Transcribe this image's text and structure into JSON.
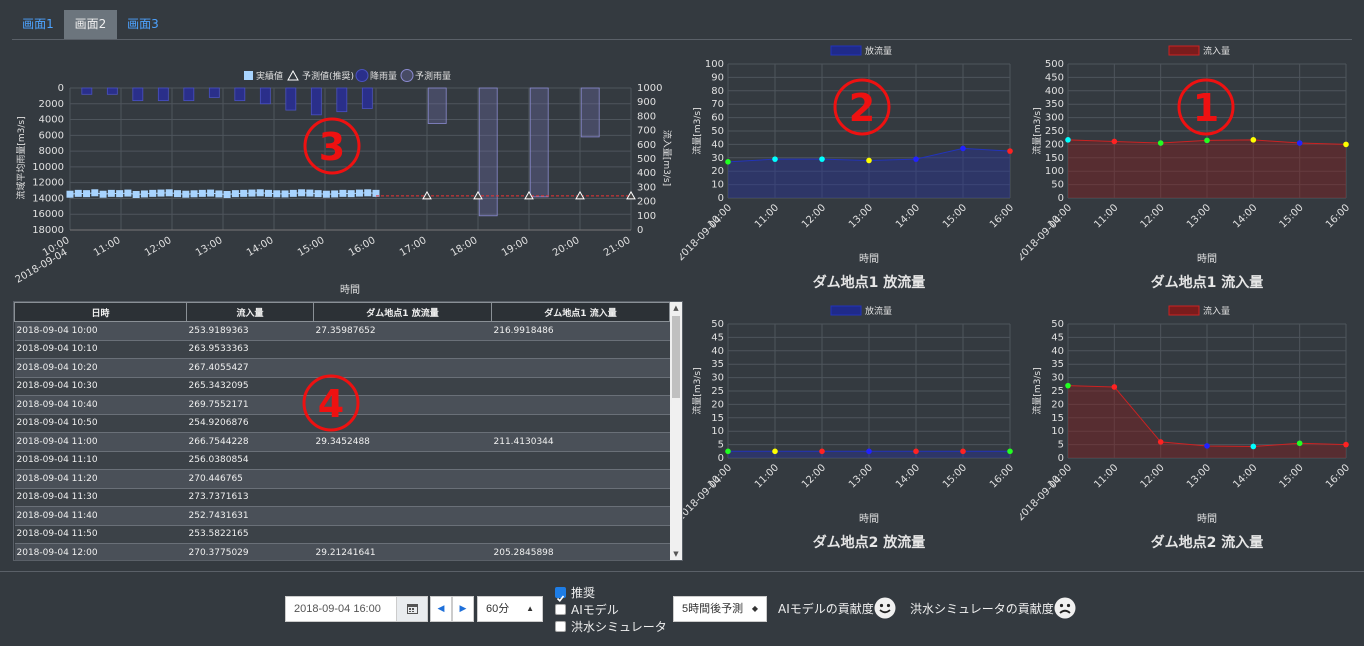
{
  "tabs": [
    "画面1",
    "画面2",
    "画面3"
  ],
  "active_tab": 1,
  "annotations": {
    "a1": "①",
    "a2": "②",
    "a3": "③",
    "a4": "④"
  },
  "main_chart": {
    "legend": [
      "実績値",
      "予測値(推奨)",
      "降雨量",
      "予測雨量"
    ],
    "y_left_label": "流域平均雨量[m3/s]",
    "y_right_label": "流入量[m3/s]",
    "xlabel": "時間",
    "x_ticks": [
      "10:00",
      "11:00",
      "12:00",
      "13:00",
      "14:00",
      "15:00",
      "16:00",
      "17:00",
      "18:00",
      "19:00",
      "20:00",
      "21:00"
    ],
    "x_first_date": "2018-09-04",
    "left_ticks": [
      "0",
      "2000",
      "4000",
      "6000",
      "8000",
      "10000",
      "12000",
      "14000",
      "16000",
      "18000"
    ],
    "right_ticks": [
      "1000",
      "900",
      "800",
      "700",
      "600",
      "500",
      "400",
      "300",
      "200",
      "100",
      "0"
    ]
  },
  "chart_data": [
    {
      "type": "bar+line",
      "title": "",
      "xlabel": "時間",
      "ylabel_left": "流域平均雨量[m3/s]",
      "ylabel_right": "流入量[m3/s]",
      "rain_bars_left_reversed": {
        "x_hours": [
          10.33,
          10.83,
          11.33,
          11.83,
          12.33,
          12.83,
          13.33,
          13.83,
          14.33,
          14.83,
          15.33,
          15.83
        ],
        "values": [
          800,
          800,
          1600,
          1600,
          1600,
          1200,
          1600,
          2000,
          2800,
          3400,
          3000,
          2600
        ]
      },
      "forecast_rain_bars": {
        "x_hours": [
          17.2,
          18.2,
          19.2,
          20.2
        ],
        "values": [
          4500,
          16200,
          13800,
          6200
        ]
      },
      "actual_inflow": {
        "x_range": [
          "10:00",
          "16:00"
        ],
        "values_approx": [
          252,
          258,
          256,
          262,
          252,
          258,
          256,
          260,
          250,
          254,
          258,
          260,
          262,
          256,
          252,
          255,
          258,
          260,
          254,
          250,
          256,
          258,
          260,
          262,
          258,
          255,
          254,
          258,
          262,
          260,
          256,
          252,
          254,
          258,
          256,
          260,
          262,
          258
        ]
      },
      "forecast_inflow": {
        "x_hours": [
          16,
          17,
          18,
          19,
          20,
          21
        ],
        "values": [
          240,
          240,
          240,
          240,
          240,
          240
        ]
      },
      "ylim_left": [
        18000,
        0
      ],
      "ylim_right": [
        0,
        1000
      ]
    },
    {
      "type": "line",
      "title": "ダム地点1 放流量",
      "legend": "放流量",
      "xlabel": "時間",
      "ylabel": "流量[m3/s]",
      "ylim": [
        0,
        100
      ],
      "x": [
        "10:00",
        "11:00",
        "12:00",
        "13:00",
        "14:00",
        "15:00",
        "16:00"
      ],
      "values": [
        27,
        29,
        29,
        28,
        29,
        37,
        35
      ]
    },
    {
      "type": "line",
      "title": "ダム地点1 流入量",
      "legend": "流入量",
      "xlabel": "時間",
      "ylabel": "流量[m3/s]",
      "ylim": [
        0,
        500
      ],
      "x": [
        "10:00",
        "11:00",
        "12:00",
        "13:00",
        "14:00",
        "15:00",
        "16:00"
      ],
      "values": [
        217,
        211,
        205,
        215,
        217,
        205,
        200
      ]
    },
    {
      "type": "line",
      "title": "ダム地点2 放流量",
      "legend": "放流量",
      "xlabel": "時間",
      "ylabel": "流量[m3/s]",
      "ylim": [
        0,
        50
      ],
      "x": [
        "10:00",
        "11:00",
        "12:00",
        "13:00",
        "14:00",
        "15:00",
        "16:00"
      ],
      "values": [
        2.5,
        2.5,
        2.5,
        2.5,
        2.5,
        2.5,
        2.5
      ]
    },
    {
      "type": "line",
      "title": "ダム地点2 流入量",
      "legend": "流入量",
      "xlabel": "時間",
      "ylabel": "流量[m3/s]",
      "ylim": [
        0,
        50
      ],
      "x": [
        "10:00",
        "11:00",
        "12:00",
        "13:00",
        "14:00",
        "15:00",
        "16:00"
      ],
      "values": [
        27,
        26.5,
        6,
        4.5,
        4.3,
        5.5,
        5
      ]
    }
  ],
  "small_charts": [
    {
      "title": "ダム地点1 放流量",
      "legend": "放流量",
      "ylabel": "流量[m3/s]",
      "xlabel": "時間",
      "ticks": [
        "0",
        "10",
        "20",
        "30",
        "40",
        "50",
        "60",
        "70",
        "80",
        "90",
        "100"
      ]
    },
    {
      "title": "ダム地点1 流入量",
      "legend": "流入量",
      "ylabel": "流量[m3/s]",
      "xlabel": "時間",
      "ticks": [
        "0",
        "50",
        "100",
        "150",
        "200",
        "250",
        "300",
        "350",
        "400",
        "450",
        "500"
      ]
    },
    {
      "title": "ダム地点2 放流量",
      "legend": "放流量",
      "ylabel": "流量[m3/s]",
      "xlabel": "時間",
      "ticks": [
        "0",
        "5",
        "10",
        "15",
        "20",
        "25",
        "30",
        "35",
        "40",
        "45",
        "50"
      ]
    },
    {
      "title": "ダム地点2 流入量",
      "legend": "流入量",
      "ylabel": "流量[m3/s]",
      "xlabel": "時間",
      "ticks": [
        "0",
        "5",
        "10",
        "15",
        "20",
        "25",
        "30",
        "35",
        "40",
        "45",
        "50"
      ]
    }
  ],
  "small_x_ticks": [
    "10:00",
    "11:00",
    "12:00",
    "13:00",
    "14:00",
    "15:00",
    "16:00"
  ],
  "small_x_first_date": "2018-09-04",
  "table": {
    "headers": [
      "日時",
      "流入量",
      "ダム地点1 放流量",
      "ダム地点1 流入量"
    ],
    "rows": [
      [
        "2018-09-04 10:00",
        "253.9189363",
        "27.35987652",
        "216.9918486"
      ],
      [
        "2018-09-04 10:10",
        "263.9533363",
        "",
        ""
      ],
      [
        "2018-09-04 10:20",
        "267.4055427",
        "",
        ""
      ],
      [
        "2018-09-04 10:30",
        "265.3432095",
        "",
        ""
      ],
      [
        "2018-09-04 10:40",
        "269.7552171",
        "",
        ""
      ],
      [
        "2018-09-04 10:50",
        "254.9206876",
        "",
        ""
      ],
      [
        "2018-09-04 11:00",
        "266.7544228",
        "29.3452488",
        "211.4130344"
      ],
      [
        "2018-09-04 11:10",
        "256.0380854",
        "",
        ""
      ],
      [
        "2018-09-04 11:20",
        "270.446765",
        "",
        ""
      ],
      [
        "2018-09-04 11:30",
        "273.7371613",
        "",
        ""
      ],
      [
        "2018-09-04 11:40",
        "252.7431631",
        "",
        ""
      ],
      [
        "2018-09-04 11:50",
        "253.5822165",
        "",
        ""
      ],
      [
        "2018-09-04 12:00",
        "270.3775029",
        "29.21241641",
        "205.2845898"
      ]
    ]
  },
  "controls": {
    "date_value": "2018-09-04 16:00",
    "interval": "60分",
    "forecast": "5時間後予測",
    "checkboxes": [
      {
        "label": "推奨",
        "checked": true
      },
      {
        "label": "AIモデル",
        "checked": false
      },
      {
        "label": "洪水シミュレータ",
        "checked": false
      }
    ],
    "ai_contrib": "AIモデルの貢献度",
    "sim_contrib": "洪水シミュレータの貢献度"
  }
}
